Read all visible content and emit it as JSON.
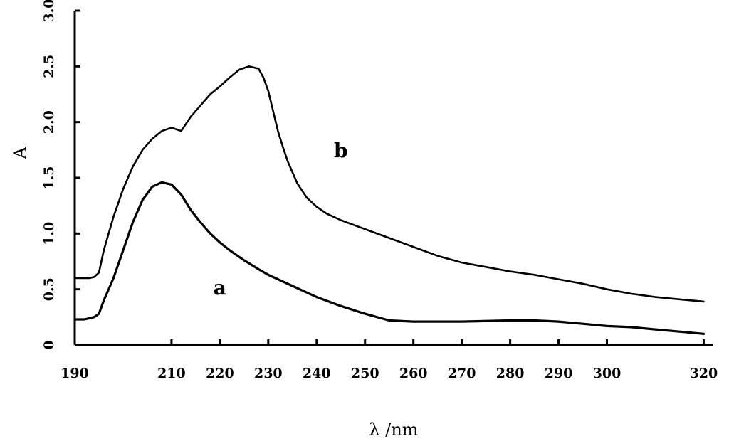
{
  "chart_data": {
    "type": "line",
    "title": "",
    "xlabel": "λ /nm",
    "ylabel": "A",
    "xlim": [
      190,
      322
    ],
    "ylim": [
      0,
      3.0
    ],
    "x_ticks": [
      190,
      210,
      220,
      230,
      240,
      250,
      260,
      270,
      280,
      290,
      300,
      320
    ],
    "y_ticks": [
      0,
      0.5,
      1.0,
      1.5,
      2.0,
      2.5,
      3.0
    ],
    "y_tick_labels": [
      "0",
      "0.5",
      "1.0",
      "1.5",
      "2.0",
      "2.5",
      "3.0"
    ],
    "grid": false,
    "legend": "none",
    "series": [
      {
        "name": "a",
        "x": [
          190,
          192,
          193,
          194,
          195,
          196,
          198,
          200,
          202,
          204,
          206,
          208,
          210,
          212,
          214,
          216,
          218,
          220,
          222,
          225,
          228,
          230,
          235,
          240,
          245,
          250,
          255,
          260,
          270,
          280,
          285,
          290,
          295,
          300,
          305,
          310,
          315,
          320
        ],
        "y": [
          0.23,
          0.23,
          0.24,
          0.25,
          0.28,
          0.4,
          0.6,
          0.85,
          1.1,
          1.3,
          1.42,
          1.46,
          1.44,
          1.35,
          1.21,
          1.1,
          1.0,
          0.92,
          0.85,
          0.76,
          0.68,
          0.63,
          0.53,
          0.43,
          0.35,
          0.28,
          0.22,
          0.21,
          0.21,
          0.22,
          0.22,
          0.21,
          0.19,
          0.17,
          0.16,
          0.14,
          0.12,
          0.1
        ]
      },
      {
        "name": "b",
        "x": [
          190,
          191,
          192,
          193,
          194,
          195,
          196,
          198,
          200,
          202,
          204,
          206,
          208,
          210,
          212,
          214,
          216,
          218,
          220,
          222,
          224,
          226,
          228,
          229,
          230,
          231,
          232,
          233,
          234,
          235,
          236,
          238,
          240,
          242,
          245,
          250,
          255,
          260,
          265,
          270,
          275,
          280,
          285,
          290,
          295,
          300,
          305,
          310,
          315,
          320
        ],
        "y": [
          0.6,
          0.6,
          0.6,
          0.6,
          0.61,
          0.65,
          0.85,
          1.15,
          1.4,
          1.6,
          1.75,
          1.85,
          1.92,
          1.95,
          1.92,
          2.05,
          2.15,
          2.25,
          2.32,
          2.4,
          2.47,
          2.5,
          2.48,
          2.4,
          2.28,
          2.1,
          1.92,
          1.78,
          1.65,
          1.55,
          1.45,
          1.32,
          1.24,
          1.18,
          1.12,
          1.04,
          0.96,
          0.88,
          0.8,
          0.74,
          0.7,
          0.66,
          0.63,
          0.59,
          0.55,
          0.5,
          0.46,
          0.43,
          0.41,
          0.39
        ]
      }
    ]
  }
}
